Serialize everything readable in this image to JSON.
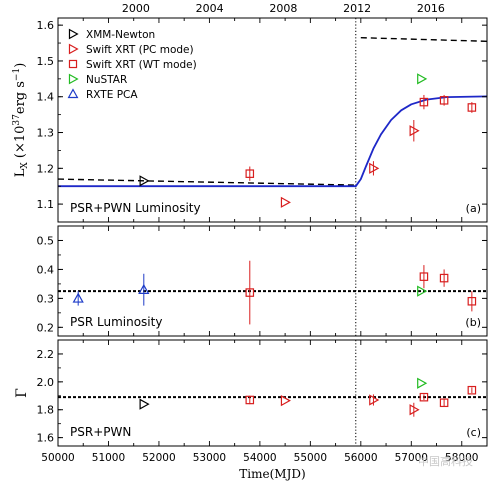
{
  "watermark": "中国高科技",
  "chart_data": [
    {
      "type": "scatter",
      "panel": "a",
      "panel_label": "(a)",
      "panel_text": "PSR+PWN Luminosity",
      "top_axis": {
        "label_years": [
          "2000",
          "2004",
          "2008",
          "2012",
          "2016"
        ],
        "year_mjd": [
          51544,
          53005,
          54466,
          55927,
          57388
        ]
      },
      "xlim": [
        50000,
        58500
      ],
      "ylim": [
        1.05,
        1.62
      ],
      "yticks": [
        1.1,
        1.2,
        1.3,
        1.4,
        1.5,
        1.6
      ],
      "ylabel": "L_X (×10^37 erg s^-1)",
      "vertical_line_mjd": 55900,
      "legend": {
        "placement": "top-left",
        "entries": [
          {
            "name": "XMM-Newton",
            "marker": "triangle-right",
            "color": "#000000"
          },
          {
            "name": "Swift XRT (PC mode)",
            "marker": "triangle-right",
            "color": "#d81e1e"
          },
          {
            "name": "Swift XRT (WT mode)",
            "marker": "square",
            "color": "#d81e1e"
          },
          {
            "name": "NuSTAR",
            "marker": "triangle-right",
            "color": "#22bb22"
          },
          {
            "name": "RXTE PCA",
            "marker": "triangle-up",
            "color": "#1e3cc8"
          }
        ]
      },
      "series": [
        {
          "name": "XMM-Newton",
          "marker": "triangle-right",
          "color": "#000000",
          "points": [
            {
              "x": 51700,
              "y": 1.165
            }
          ]
        },
        {
          "name": "Swift XRT (PC mode)",
          "marker": "triangle-right",
          "color": "#d81e1e",
          "points": [
            {
              "x": 54500,
              "y": 1.105
            },
            {
              "x": 56250,
              "y": 1.2,
              "yerr": 0.02
            },
            {
              "x": 57050,
              "y": 1.305,
              "yerr": 0.03
            }
          ]
        },
        {
          "name": "Swift XRT (WT mode)",
          "marker": "square",
          "color": "#d81e1e",
          "points": [
            {
              "x": 53800,
              "y": 1.185,
              "yerr": 0.02
            },
            {
              "x": 57250,
              "y": 1.385,
              "yerr": 0.02
            },
            {
              "x": 57650,
              "y": 1.39,
              "yerr": 0.015
            },
            {
              "x": 58200,
              "y": 1.37,
              "yerr": 0.015
            }
          ]
        },
        {
          "name": "NuSTAR",
          "marker": "triangle-right",
          "color": "#22bb22",
          "points": [
            {
              "x": 57200,
              "y": 1.45
            }
          ]
        }
      ],
      "model_curve": {
        "color": "#1e28c8",
        "points": [
          [
            50000,
            1.15
          ],
          [
            55900,
            1.15
          ],
          [
            56000,
            1.17
          ],
          [
            56100,
            1.205
          ],
          [
            56250,
            1.255
          ],
          [
            56400,
            1.295
          ],
          [
            56600,
            1.335
          ],
          [
            56800,
            1.362
          ],
          [
            57000,
            1.379
          ],
          [
            57300,
            1.392
          ],
          [
            57700,
            1.399
          ],
          [
            58500,
            1.401
          ]
        ]
      },
      "dashed_curves": [
        {
          "color": "#000000",
          "points": [
            [
              50000,
              1.17
            ],
            [
              55900,
              1.153
            ]
          ]
        },
        {
          "color": "#000000",
          "points": [
            [
              56000,
              1.565
            ],
            [
              58500,
              1.555
            ]
          ]
        }
      ]
    },
    {
      "type": "scatter",
      "panel": "b",
      "panel_label": "(b)",
      "panel_text": "PSR Luminosity",
      "xlim": [
        50000,
        58500
      ],
      "ylim": [
        0.17,
        0.55
      ],
      "yticks": [
        0.2,
        0.3,
        0.4,
        0.5
      ],
      "horizontal_line_y": 0.325,
      "vertical_line_mjd": 55900,
      "series": [
        {
          "name": "RXTE PCA",
          "marker": "triangle-up",
          "color": "#1e3cc8",
          "points": [
            {
              "x": 50400,
              "y": 0.3,
              "yerr": 0.025
            },
            {
              "x": 51700,
              "y": 0.33,
              "yerr": 0.055
            }
          ]
        },
        {
          "name": "Swift XRT (WT mode)",
          "marker": "square",
          "color": "#d81e1e",
          "points": [
            {
              "x": 53800,
              "y": 0.32,
              "yerr": 0.11
            },
            {
              "x": 57250,
              "y": 0.375,
              "yerr": 0.04
            },
            {
              "x": 57650,
              "y": 0.37,
              "yerr": 0.03
            },
            {
              "x": 58200,
              "y": 0.29,
              "yerr": 0.035
            }
          ]
        },
        {
          "name": "NuSTAR",
          "marker": "triangle-right",
          "color": "#22bb22",
          "points": [
            {
              "x": 57200,
              "y": 0.325
            }
          ]
        }
      ]
    },
    {
      "type": "scatter",
      "panel": "c",
      "panel_label": "(c)",
      "panel_text": "PSR+PWN",
      "xlim": [
        50000,
        58500
      ],
      "xticks": [
        50000,
        51000,
        52000,
        53000,
        54000,
        55000,
        56000,
        57000,
        58000
      ],
      "xtick_labels": [
        "50000",
        "51000",
        "52000",
        "53000",
        "54000",
        "55000",
        "56000",
        "57000",
        "58000"
      ],
      "xlabel": "Time(MJD)",
      "ylim": [
        1.54,
        2.3
      ],
      "yticks": [
        1.6,
        1.8,
        2.0,
        2.2
      ],
      "ylabel": "Γ",
      "horizontal_line_y": 1.89,
      "vertical_line_mjd": 55900,
      "series": [
        {
          "name": "XMM-Newton",
          "marker": "triangle-right",
          "color": "#000000",
          "points": [
            {
              "x": 51700,
              "y": 1.84
            }
          ]
        },
        {
          "name": "Swift XRT (PC mode)",
          "marker": "triangle-right",
          "color": "#d81e1e",
          "points": [
            {
              "x": 54500,
              "y": 1.865
            },
            {
              "x": 56250,
              "y": 1.87,
              "yerr": 0.04
            },
            {
              "x": 57050,
              "y": 1.8,
              "yerr": 0.05
            }
          ]
        },
        {
          "name": "Swift XRT (WT mode)",
          "marker": "square",
          "color": "#d81e1e",
          "points": [
            {
              "x": 53800,
              "y": 1.87,
              "yerr": 0.03
            },
            {
              "x": 57250,
              "y": 1.89,
              "yerr": 0.02
            },
            {
              "x": 57650,
              "y": 1.85,
              "yerr": 0.025
            },
            {
              "x": 58200,
              "y": 1.94,
              "yerr": 0.02
            }
          ]
        },
        {
          "name": "NuSTAR",
          "marker": "triangle-right",
          "color": "#22bb22",
          "points": [
            {
              "x": 57200,
              "y": 1.99
            }
          ]
        }
      ]
    }
  ]
}
